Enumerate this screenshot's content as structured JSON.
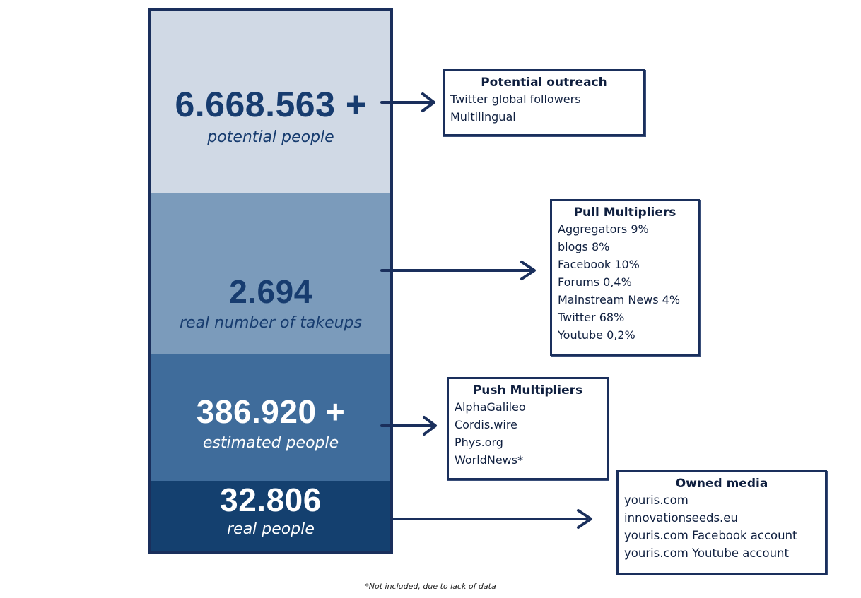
{
  "column": {
    "segments": [
      {
        "value": "6.668.563 +",
        "caption": "potential people"
      },
      {
        "value": "2.694",
        "caption": "real number of takeups"
      },
      {
        "value": "386.920 +",
        "caption": "estimated people"
      },
      {
        "value": "32.806",
        "caption": "real people"
      }
    ],
    "colors": [
      "#d0d9e5",
      "#7b9bbb",
      "#3f6c9b",
      "#14406f"
    ]
  },
  "boxes": [
    {
      "title": "Potential outreach",
      "items": [
        "Twitter global followers",
        "Multilingual"
      ]
    },
    {
      "title": "Pull Multipliers",
      "items": [
        "Aggregators 9%",
        "blogs 8%",
        "Facebook 10%",
        "Forums 0,4%",
        "Mainstream News 4%",
        "Twitter 68%",
        "Youtube 0,2%"
      ]
    },
    {
      "title": "Push Multipliers",
      "items": [
        "AlphaGalileo",
        "Cordis.wire",
        "Phys.org",
        "WorldNews*"
      ]
    },
    {
      "title": "Owned media",
      "items": [
        "youris.com",
        "innovationseeds.eu",
        "youris.com Facebook account",
        "youris.com Youtube account"
      ]
    }
  ],
  "footnote": "*Not included, due to lack of data"
}
